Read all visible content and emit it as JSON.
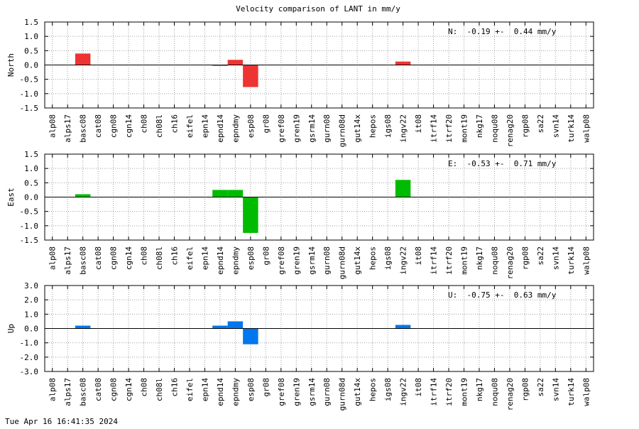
{
  "chart_data": {
    "type": "bar",
    "title": "Velocity comparison of LANT in mm/y",
    "footer": "Tue Apr 16 16:41:35 2024",
    "categories": [
      "alp08",
      "alps17",
      "basc08",
      "cat08",
      "cgn08",
      "cgn14",
      "ch08",
      "ch08l",
      "ch16",
      "eifel",
      "epn14",
      "epnd14",
      "epndmy",
      "esp08",
      "gr08",
      "gref08",
      "gren19",
      "gsrm14",
      "gurn08",
      "gurn08d",
      "gut14x",
      "hepos",
      "igs08",
      "ingv22",
      "it08",
      "itrf14",
      "itrf20",
      "mont19",
      "nkg17",
      "noqu08",
      "renag20",
      "rgp08",
      "sa22",
      "svn14",
      "turk14",
      "walp08"
    ],
    "grid": true,
    "panels": [
      {
        "ylabel": "North",
        "ylim": [
          -1.5,
          1.5
        ],
        "yticks": [
          "1.5",
          "1.0",
          "0.5",
          "0.0",
          "-0.5",
          "-1.0",
          "-1.5"
        ],
        "color": "#ee3333",
        "stats": "N:  -0.19 +-  0.44 mm/y",
        "values": [
          0,
          0,
          0.4,
          0,
          0,
          0,
          0,
          0,
          0,
          0,
          0,
          -0.03,
          0.18,
          -0.77,
          0,
          0,
          0,
          0,
          0,
          0,
          0,
          0,
          0,
          0.12,
          0,
          0,
          0,
          0,
          0,
          0,
          0,
          0,
          0,
          0,
          0,
          0
        ]
      },
      {
        "ylabel": "East",
        "ylim": [
          -1.5,
          1.5
        ],
        "yticks": [
          "1.5",
          "1.0",
          "0.5",
          "0.0",
          "-0.5",
          "-1.0",
          "-1.5"
        ],
        "color": "#00bb00",
        "stats": "E:  -0.53 +-  0.71 mm/y",
        "values": [
          0,
          0,
          0.1,
          0,
          0,
          0,
          0,
          0,
          0,
          0,
          0,
          0.25,
          0.25,
          -1.25,
          0,
          0,
          0,
          0,
          0,
          0,
          0,
          0,
          0,
          0.6,
          0,
          0,
          0,
          0,
          0,
          0,
          0,
          0,
          0,
          0,
          0,
          0
        ]
      },
      {
        "ylabel": "Up",
        "ylim": [
          -3.0,
          3.0
        ],
        "yticks": [
          "3.0",
          "2.0",
          "1.0",
          "0.0",
          "-1.0",
          "-2.0",
          "-3.0"
        ],
        "color": "#0077ee",
        "stats": "U:  -0.75 +-  0.63 mm/y",
        "values": [
          0,
          0,
          0.2,
          0,
          0,
          0,
          0,
          0,
          0,
          0,
          0,
          0.2,
          0.5,
          -1.1,
          0,
          0,
          0,
          0,
          0,
          0,
          0,
          0,
          0,
          0.25,
          0,
          0,
          0,
          0,
          0,
          0,
          0,
          0,
          0,
          0,
          0,
          0
        ]
      }
    ]
  }
}
